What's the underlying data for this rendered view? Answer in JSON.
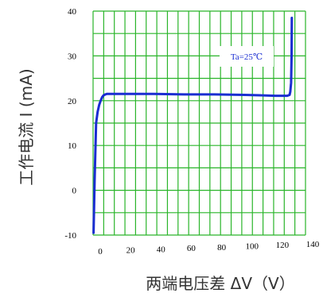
{
  "chart_data": {
    "type": "line",
    "xlabel": "两端电压差 ΔV（V）",
    "ylabel": "工作电流 I (mA)",
    "xlim": [
      0,
      140
    ],
    "ylim": [
      -10,
      40
    ],
    "x_ticks": [
      "0",
      "20",
      "40",
      "60",
      "80",
      "100",
      "120",
      "140"
    ],
    "y_ticks": [
      "40",
      "30",
      "20",
      "10",
      "0",
      "-10"
    ],
    "grid": true,
    "annotation": "Ta=25℃",
    "series": [
      {
        "x": [
          0.3,
          1,
          2,
          3,
          4,
          5,
          6,
          7,
          8,
          9,
          10,
          20,
          40,
          60,
          80,
          100,
          110,
          120,
          128,
          129.5,
          130,
          130.5,
          130.8,
          131
        ],
        "y": [
          -9.5,
          2,
          15,
          17.5,
          19,
          20,
          20.8,
          21.2,
          21.4,
          21.5,
          21.5,
          21.5,
          21.5,
          21.4,
          21.4,
          21.3,
          21.2,
          21.1,
          21.1,
          21.3,
          22,
          24,
          30,
          38.5
        ]
      }
    ],
    "colors": {
      "line": "#1a2dd1",
      "grid": "#2ab52a"
    }
  }
}
